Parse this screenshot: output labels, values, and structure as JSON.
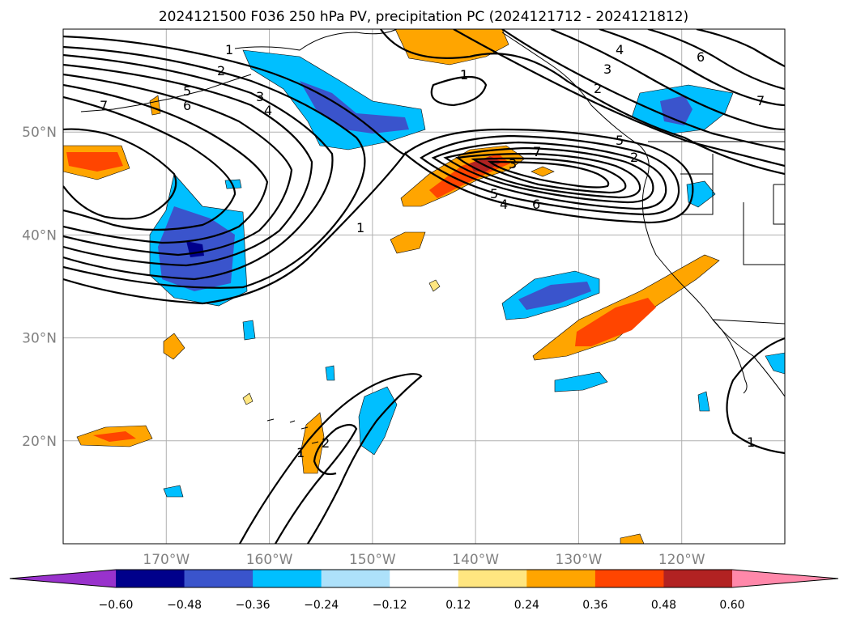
{
  "chart_data": {
    "type": "heatmap",
    "title": "2024121500 F036 250 hPa PV, precipitation PC (2024121712 - 2024121812)",
    "x_ticks": [
      "170°W",
      "160°W",
      "150°W",
      "140°W",
      "130°W",
      "120°W"
    ],
    "x_tick_values": [
      -170,
      -160,
      -150,
      -140,
      -130,
      -120
    ],
    "y_ticks": [
      "50°N",
      "40°N",
      "30°N",
      "20°N"
    ],
    "y_tick_values": [
      50,
      40,
      30,
      20
    ],
    "xlim": [
      -180,
      -110
    ],
    "ylim": [
      10,
      60
    ],
    "grid": true,
    "colorbar": {
      "placement": "bottom",
      "extend": "both",
      "ticks": [
        "−0.60",
        "−0.48",
        "−0.36",
        "−0.24",
        "−0.12",
        "0.12",
        "0.24",
        "0.36",
        "0.48",
        "0.60"
      ],
      "colors": [
        "#9932cc",
        "#00008b",
        "#3a54cc",
        "#00bfff",
        "#ade1fa",
        "#ffffff",
        "#ffe680",
        "#ffa500",
        "#ff4500",
        "#b22222",
        "#ff88aa"
      ]
    },
    "contour_labels": [
      "1",
      "2",
      "3",
      "4",
      "5",
      "6",
      "7",
      "1",
      "2",
      "3",
      "4",
      "5",
      "6",
      "7",
      "1",
      "1",
      "1",
      "2",
      "7",
      "1",
      "2",
      "3",
      "4",
      "5",
      "6",
      "7"
    ]
  }
}
